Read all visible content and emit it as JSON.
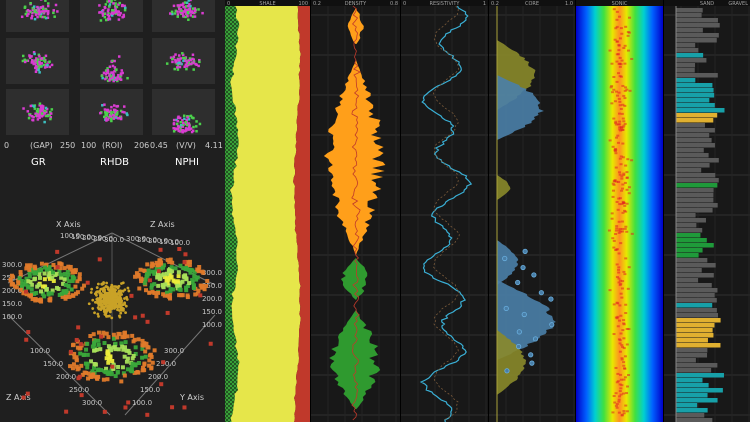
{
  "matrix": {
    "tracks": [
      "GR",
      "RHDB",
      "NPHI"
    ],
    "axis_labels": [
      {
        "min": "0",
        "unit": "(GAP)",
        "max": "250"
      },
      {
        "min": "100",
        "unit": "(ROI)",
        "max": "206"
      },
      {
        "min": "0.45",
        "unit": "(V/V)",
        "max": "4.11"
      }
    ],
    "colors": {
      "pink": "#d93cd1",
      "green": "#4bd14b",
      "teal": "#3cc0c0",
      "yellow": "#e8e14a",
      "tile": "#2e2e2e"
    }
  },
  "chart3d": {
    "x_axis_title": "X Axis",
    "y_axis_title": "Y Axis",
    "z_axis_title": "Z Axis",
    "ticks_left": [
      "300.0",
      "250.0",
      "200.0",
      "150.0",
      "100.0"
    ],
    "ticks_top_left": [
      "100.0",
      "150.0",
      "200.0",
      "250.0",
      "300.0"
    ],
    "ticks_top_right": [
      "300.0",
      "250.0",
      "200.0",
      "150.0",
      "100.0"
    ],
    "ticks_right": [
      "300.0",
      "250.0",
      "200.0",
      "150.0",
      "100.0"
    ],
    "ticks_bottom_left": [
      "100.0",
      "150.0",
      "200.0",
      "250.0",
      "300.0"
    ],
    "ticks_bottom_right": [
      "300.0",
      "250.0",
      "200.0",
      "150.0",
      "100.0"
    ],
    "colors": {
      "orange": "#e07a2a",
      "yellow": "#ecec3a",
      "lightgreen": "#a8e05a",
      "green": "#3aa83a",
      "red": "#c0392b",
      "dots": "#c9a227"
    }
  },
  "log_tracks": {
    "colors": {
      "panel": "#181818",
      "grid": "#2f2f2f",
      "yellow_fill": "#e6e64a",
      "red_fill": "#c0392b",
      "hatch": "#3aa83a",
      "orange_fill": "#ff9f1a",
      "green_fill": "#2f9a2f",
      "blue_line": "#3ab0d6",
      "area_fill": "#4a7fa8",
      "olive_fill": "#8a8a2a",
      "heat_blue": "#0000c8",
      "bar_gray": "#5a5a5a",
      "bar_teal": "#17a0a8",
      "bar_gold": "#e0b030",
      "bar_green": "#1f9a3a"
    },
    "headers": [
      {
        "min": "0",
        "name": "SHALE",
        "max": "100"
      },
      {
        "min": "0.2",
        "name": "DENSITY",
        "max": "0.8"
      },
      {
        "min": "0",
        "name": "RESISTIVITY",
        "max": "1"
      },
      {
        "min": "0.2",
        "name": "CORE",
        "max": "1.0"
      },
      {
        "min": "",
        "name": "SONIC",
        "max": ""
      },
      {
        "min": "",
        "name": "SAND",
        "max": "GRAVEL"
      }
    ]
  }
}
